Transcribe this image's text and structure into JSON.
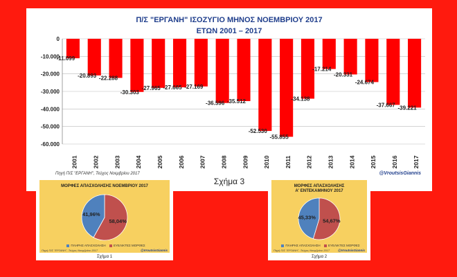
{
  "main_chart": {
    "title_line1": "Π/Σ \"ΕΡΓΑΝΗ\" ΙΣΟΖΥΓΙΟ ΜΗΝΟΣ ΝΟΕΜΒΡΙΟΥ 2017",
    "title_line2": "ΕΤΩΝ 2001 – 2017",
    "source": "Πηγή Π/Σ \"ΕΡΓΑΝΗ\", Τεύχος Νοεμβρίου 2017",
    "watermark": "@VroutsisGiannis",
    "caption": "Σχήμα 3"
  },
  "chart_data": [
    {
      "type": "bar",
      "categories": [
        "2001",
        "2002",
        "2003",
        "2004",
        "2005",
        "2006",
        "2007",
        "2008",
        "2009",
        "2010",
        "2011",
        "2012",
        "2013",
        "2014",
        "2015",
        "2016",
        "2017"
      ],
      "values": [
        -11099,
        -20893,
        -22288,
        -30303,
        -27965,
        -27665,
        -27169,
        -36596,
        -35512,
        -52530,
        -55855,
        -34138,
        -17214,
        -20331,
        -24674,
        -37667,
        -39221
      ],
      "value_labels": [
        "-11.099",
        "-20.893",
        "-22.288",
        "-30.303",
        "-27.965",
        "-27.665",
        "-27.169",
        "-36.596",
        "-35.512",
        "-52.530",
        "-55.855",
        "-34.138",
        "-17.214",
        "-20.331",
        "-24.674",
        "-37.667",
        "-39.221"
      ],
      "yticks": [
        0,
        -10000,
        -20000,
        -30000,
        -40000,
        -50000,
        -60000
      ],
      "ytick_labels": [
        "0",
        "-10.000",
        "-20.000",
        "-30.000",
        "-40.000",
        "-50.000",
        "-60.000"
      ],
      "ylim": [
        -60000,
        0
      ],
      "title": "Π/Σ \"ΕΡΓΑΝΗ\" ΙΣΟΖΥΓΙΟ ΜΗΝΟΣ ΝΟΕΜΒΡΙΟΥ 2017 ΕΤΩΝ 2001 – 2017",
      "grid": true,
      "bar_color": "#ff0000"
    },
    {
      "type": "pie",
      "title": "ΜΟΡΦΕΣ ΑΠΑΣΧΟΛΗΣΗΣ ΝΟΕΜΒΡΙΟΥ 2017",
      "labels": [
        "ΠΛΗΡΗΣ ΑΠΑΣΧΟΛΗΣΗ",
        "ΕΥΕΛΙΚΤΕΣ ΜΟΡΦΕΣ"
      ],
      "values": [
        41.96,
        58.04
      ],
      "value_labels": [
        "41,96%",
        "58,04%"
      ],
      "colors": [
        "#4f81bd",
        "#c0504d"
      ]
    },
    {
      "type": "pie",
      "title": "ΜΟΡΦΕΣ ΑΠΑΣΧΟΛΗΣΗΣ Α' ΕΝΤΕΚΑΜΗΝΟΥ 2017",
      "labels": [
        "ΠΛΗΡΗΣ ΑΠΑΣΧΟΛΗΣΗ",
        "ΕΥΕΛΙΚΤΕΣ ΜΟΡΦΕΣ"
      ],
      "values": [
        45.33,
        54.67
      ],
      "value_labels": [
        "45,33%",
        "54,67%"
      ],
      "colors": [
        "#4f81bd",
        "#c0504d"
      ]
    }
  ],
  "pie1": {
    "title": "ΜΟΡΦΕΣ ΑΠΑΣΧΟΛΗΣΗΣ ΝΟΕΜΒΡΙΟΥ 2017",
    "legend_full": "ΠΛΗΡΗΣ ΑΠΑΣΧΟΛΗΣΗ",
    "legend_flex": "ΕΥΕΛΙΚΤΕΣ ΜΟΡΦΕΣ",
    "source": "Πηγή Π/Σ \"ΕΡΓΑΝΗ\", Τεύχος Νοεμβρίου 2017",
    "watermark": "@VroutsisGiannis",
    "caption": "Σχήμα 1"
  },
  "pie2": {
    "title_line1": "ΜΟΡΦΕΣ ΑΠΑΣΧΟΛΗΣΗΣ",
    "title_line2": "Α' ΕΝΤΕΚΑΜΗΝΟΥ 2017",
    "legend_full": "ΠΛΗΡΗΣ ΑΠΑΣΧΟΛΗΣΗ",
    "legend_flex": "ΕΥΕΛΙΚΤΕΣ ΜΟΡΦΕΣ",
    "source": "Πηγή Π/Σ \"ΕΡΓΑΝΗ\", Τεύχος Νοεμβρίου 2017",
    "watermark": "@VroutsisGiannis",
    "caption": "Σχήμα 2"
  }
}
